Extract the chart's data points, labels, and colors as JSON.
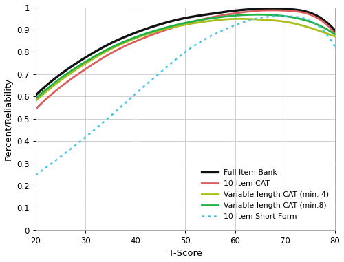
{
  "xlabel": "T-Score",
  "ylabel": "Percent/Reliability",
  "xlim": [
    20,
    80
  ],
  "ylim": [
    0,
    1.0
  ],
  "yticks": [
    0,
    0.1,
    0.2,
    0.3,
    0.4,
    0.5,
    0.6,
    0.7,
    0.8,
    0.9,
    1
  ],
  "xticks": [
    20,
    30,
    40,
    50,
    60,
    70,
    80
  ],
  "lines": [
    {
      "label": "Full Item Bank",
      "color": "#111111",
      "linewidth": 2.4,
      "linestyle": "solid",
      "points": [
        [
          20,
          0.605
        ],
        [
          25,
          0.7
        ],
        [
          30,
          0.775
        ],
        [
          35,
          0.838
        ],
        [
          40,
          0.886
        ],
        [
          45,
          0.924
        ],
        [
          50,
          0.952
        ],
        [
          55,
          0.97
        ],
        [
          60,
          0.985
        ],
        [
          65,
          0.993
        ],
        [
          70,
          0.992
        ],
        [
          75,
          0.975
        ],
        [
          80,
          0.895
        ]
      ]
    },
    {
      "label": "10-Item CAT",
      "color": "#d95f5f",
      "linewidth": 2.0,
      "linestyle": "solid",
      "points": [
        [
          20,
          0.543
        ],
        [
          25,
          0.643
        ],
        [
          30,
          0.723
        ],
        [
          35,
          0.793
        ],
        [
          40,
          0.847
        ],
        [
          45,
          0.89
        ],
        [
          50,
          0.926
        ],
        [
          55,
          0.954
        ],
        [
          60,
          0.973
        ],
        [
          65,
          0.985
        ],
        [
          70,
          0.985
        ],
        [
          75,
          0.967
        ],
        [
          80,
          0.882
        ]
      ]
    },
    {
      "label": "Variable-length CAT (min. 4)",
      "color": "#aabf1a",
      "linewidth": 2.0,
      "linestyle": "solid",
      "points": [
        [
          20,
          0.58
        ],
        [
          25,
          0.672
        ],
        [
          30,
          0.748
        ],
        [
          35,
          0.812
        ],
        [
          40,
          0.861
        ],
        [
          45,
          0.897
        ],
        [
          50,
          0.922
        ],
        [
          55,
          0.939
        ],
        [
          60,
          0.948
        ],
        [
          65,
          0.945
        ],
        [
          70,
          0.935
        ],
        [
          75,
          0.908
        ],
        [
          80,
          0.869
        ]
      ]
    },
    {
      "label": "Variable-length CAT (min.8)",
      "color": "#22b04a",
      "linewidth": 2.0,
      "linestyle": "solid",
      "points": [
        [
          20,
          0.59
        ],
        [
          25,
          0.682
        ],
        [
          30,
          0.756
        ],
        [
          35,
          0.818
        ],
        [
          40,
          0.866
        ],
        [
          45,
          0.902
        ],
        [
          50,
          0.93
        ],
        [
          55,
          0.95
        ],
        [
          60,
          0.963
        ],
        [
          65,
          0.967
        ],
        [
          70,
          0.96
        ],
        [
          75,
          0.935
        ],
        [
          80,
          0.878
        ]
      ]
    },
    {
      "label": "10-Item Short Form",
      "color": "#45c8e8",
      "linewidth": 1.8,
      "linestyle": "dotted",
      "points": [
        [
          20,
          0.248
        ],
        [
          25,
          0.33
        ],
        [
          30,
          0.418
        ],
        [
          35,
          0.512
        ],
        [
          40,
          0.612
        ],
        [
          45,
          0.708
        ],
        [
          50,
          0.8
        ],
        [
          55,
          0.87
        ],
        [
          60,
          0.92
        ],
        [
          65,
          0.953
        ],
        [
          70,
          0.96
        ],
        [
          75,
          0.94
        ],
        [
          80,
          0.822
        ]
      ]
    }
  ],
  "background_color": "#ffffff",
  "grid_color": "#d0d0d0"
}
